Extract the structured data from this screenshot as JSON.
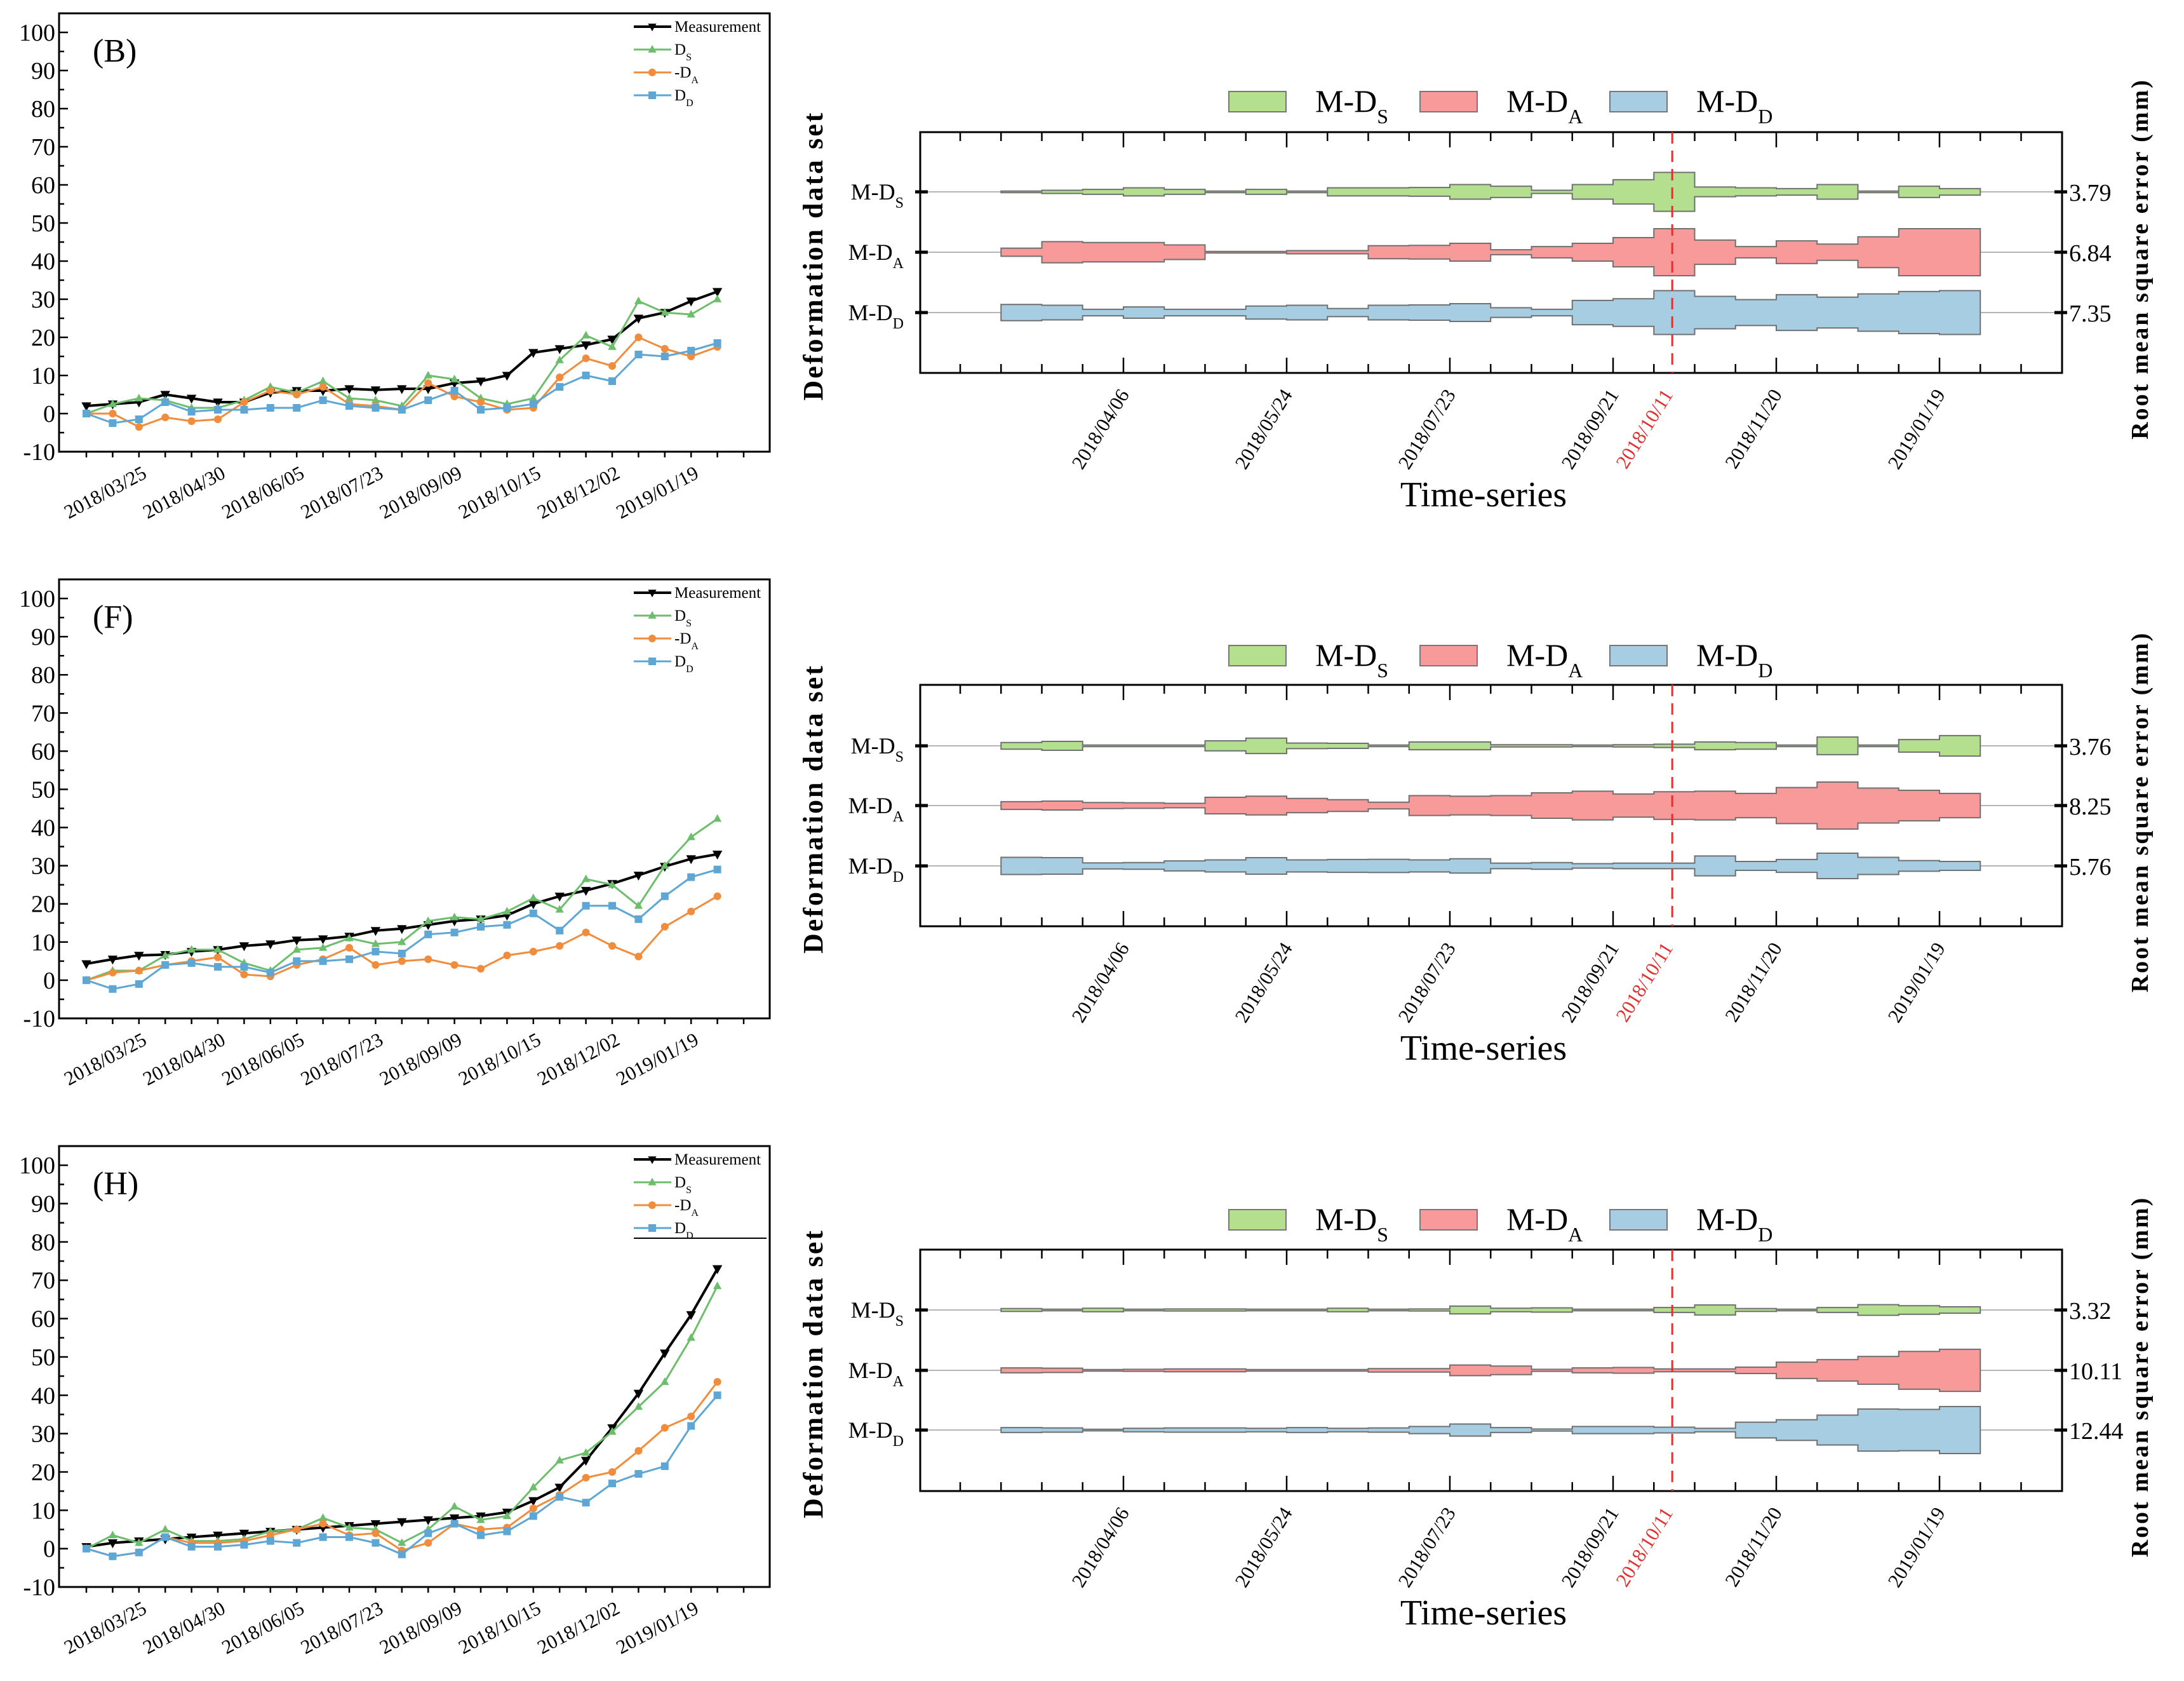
{
  "chart_data": [
    {
      "type": "line",
      "panel_label": "(B)",
      "ylim": [
        -10,
        105
      ],
      "y_ticks": [
        -10,
        0,
        10,
        20,
        30,
        40,
        50,
        60,
        70,
        80,
        90,
        100
      ],
      "y_tick_labels": [
        "-10",
        "0",
        "10",
        "20",
        "30",
        "40",
        "50",
        "60",
        "70",
        "80",
        "90",
        "100"
      ],
      "x_tick_labels": [
        "2018/03/25",
        "2018/04/30",
        "2018/06/05",
        "2018/07/23",
        "2018/09/09",
        "2018/10/15",
        "2018/12/02",
        "2019/01/19"
      ],
      "x_tick_label_indices": [
        2,
        5,
        8,
        11,
        14,
        17,
        20,
        23
      ],
      "series": [
        {
          "name": "Measurement",
          "sub": "",
          "color": "#000000",
          "marker": "triangle-down",
          "values": [
            2,
            2.5,
            3,
            5,
            4,
            3,
            3,
            5.5,
            6,
            6,
            6.5,
            6.2,
            6.5,
            6.5,
            8,
            8.5,
            10,
            16,
            17,
            18,
            19.5,
            25,
            26.5,
            29.5,
            32
          ]
        },
        {
          "name": "D",
          "sub": "S",
          "color": "#6cbd6c",
          "marker": "triangle-up",
          "values": [
            0,
            2.5,
            4,
            3.5,
            1.5,
            1.5,
            3.5,
            7,
            5.5,
            8.5,
            4,
            3.5,
            2,
            10,
            9,
            4,
            2.5,
            4,
            14,
            20.5,
            17.5,
            29.5,
            26.5,
            26,
            30
          ]
        },
        {
          "name": "-D",
          "sub": "A",
          "color": "#f08c3c",
          "marker": "circle",
          "values": [
            0,
            0,
            -3.5,
            -1,
            -2,
            -1.5,
            3,
            6,
            5,
            7,
            2.5,
            2,
            1,
            8,
            4.5,
            3,
            1,
            1.5,
            9.5,
            14.5,
            12.5,
            20,
            17,
            15,
            17.5
          ]
        },
        {
          "name": "D",
          "sub": "D",
          "color": "#5ea7d4",
          "marker": "square",
          "values": [
            0,
            -2.5,
            -1.5,
            3,
            0.5,
            1,
            1,
            1.5,
            1.5,
            3.5,
            2,
            1.5,
            1,
            3.5,
            6,
            1,
            1.5,
            2.5,
            7,
            10,
            8.5,
            15.5,
            15,
            16.5,
            18.5
          ]
        }
      ]
    },
    {
      "type": "band",
      "legend": [
        {
          "main": "M-D",
          "sub": "S",
          "color": "#b3df8f"
        },
        {
          "main": "M-D",
          "sub": "A",
          "color": "#f99a9a"
        },
        {
          "main": "M-D",
          "sub": "D",
          "color": "#a6cde2"
        }
      ],
      "rows": [
        {
          "main": "M-D",
          "sub": "S",
          "rmse": "3.79"
        },
        {
          "main": "M-D",
          "sub": "A",
          "rmse": "6.84"
        },
        {
          "main": "M-D",
          "sub": "D",
          "rmse": "7.35"
        }
      ],
      "x_tick_labels": [
        {
          "label": "2018/04/06",
          "index": 4
        },
        {
          "label": "2018/05/24",
          "index": 8
        },
        {
          "label": "2018/07/23",
          "index": 12
        },
        {
          "label": "2018/09/21",
          "index": 16
        },
        {
          "label": "2018/11/20",
          "index": 20
        },
        {
          "label": "2019/01/19",
          "index": 24
        }
      ],
      "marker_date": {
        "label": "2018/10/11",
        "index": 17.45,
        "color": "#e03030"
      },
      "xlabel": "Time-series",
      "ylabel": "Deformation data set",
      "y2label": "Root mean square error (mm)"
    },
    {
      "type": "line",
      "panel_label": "(F)",
      "ylim": [
        -10,
        105
      ],
      "y_ticks": [
        -10,
        0,
        10,
        20,
        30,
        40,
        50,
        60,
        70,
        80,
        90,
        100
      ],
      "y_tick_labels": [
        "-10",
        "0",
        "10",
        "20",
        "30",
        "40",
        "50",
        "60",
        "70",
        "80",
        "90",
        "100"
      ],
      "x_tick_labels": [
        "2018/03/25",
        "2018/04/30",
        "2018/06/05",
        "2018/07/23",
        "2018/09/09",
        "2018/10/15",
        "2018/12/02",
        "2019/01/19"
      ],
      "x_tick_label_indices": [
        2,
        5,
        8,
        11,
        14,
        17,
        20,
        23
      ],
      "series": [
        {
          "name": "Measurement",
          "sub": "",
          "color": "#000000",
          "marker": "triangle-down",
          "values": [
            4.3,
            5.5,
            6.5,
            6.7,
            7.5,
            8,
            9,
            9.5,
            10.5,
            10.8,
            11.5,
            13,
            13.5,
            14.5,
            15.5,
            16,
            17,
            20,
            22,
            23.5,
            25.3,
            27.5,
            29.8,
            31.8,
            33
          ]
        },
        {
          "name": "D",
          "sub": "S",
          "color": "#6cbd6c",
          "marker": "triangle-up",
          "values": [
            0,
            2.5,
            2.5,
            6.5,
            8,
            8,
            4.5,
            2.5,
            8,
            8.5,
            11,
            9.5,
            10,
            15.5,
            16.5,
            16,
            18,
            21.5,
            18.5,
            26.5,
            25,
            19.5,
            30,
            37.5,
            42.3
          ]
        },
        {
          "name": "-D",
          "sub": "A",
          "color": "#f08c3c",
          "marker": "circle",
          "values": [
            0,
            2,
            2.5,
            4,
            5,
            6,
            1.5,
            1,
            4,
            5.5,
            8.5,
            4,
            5,
            5.5,
            4,
            3,
            6.5,
            7.5,
            9,
            12.5,
            9,
            6.2,
            14,
            18,
            22
          ]
        },
        {
          "name": "D",
          "sub": "D",
          "color": "#5ea7d4",
          "marker": "square",
          "values": [
            0,
            -2.3,
            -1,
            4,
            4.5,
            3.5,
            3.5,
            2,
            5,
            5,
            5.5,
            7.5,
            7,
            12,
            12.5,
            14,
            14.5,
            17.5,
            13,
            19.5,
            19.5,
            16,
            22,
            27,
            29
          ]
        }
      ]
    },
    {
      "type": "band",
      "legend": [
        {
          "main": "M-D",
          "sub": "S",
          "color": "#b3df8f"
        },
        {
          "main": "M-D",
          "sub": "A",
          "color": "#f99a9a"
        },
        {
          "main": "M-D",
          "sub": "D",
          "color": "#a6cde2"
        }
      ],
      "rows": [
        {
          "main": "M-D",
          "sub": "S",
          "rmse": "3.76"
        },
        {
          "main": "M-D",
          "sub": "A",
          "rmse": "8.25"
        },
        {
          "main": "M-D",
          "sub": "D",
          "rmse": "5.76"
        }
      ],
      "x_tick_labels": [
        {
          "label": "2018/04/06",
          "index": 4
        },
        {
          "label": "2018/05/24",
          "index": 8
        },
        {
          "label": "2018/07/23",
          "index": 12
        },
        {
          "label": "2018/09/21",
          "index": 16
        },
        {
          "label": "2018/11/20",
          "index": 20
        },
        {
          "label": "2019/01/19",
          "index": 24
        }
      ],
      "marker_date": {
        "label": "2018/10/11",
        "index": 17.45,
        "color": "#e03030"
      },
      "xlabel": "Time-series",
      "ylabel": "Deformation data set",
      "y2label": "Root mean square error (mm)"
    },
    {
      "type": "line",
      "panel_label": "(H)",
      "ylim": [
        -10,
        105
      ],
      "y_ticks": [
        -10,
        0,
        10,
        20,
        30,
        40,
        50,
        60,
        70,
        80,
        90,
        100
      ],
      "y_tick_labels": [
        "-10",
        "0",
        "10",
        "20",
        "30",
        "40",
        "50",
        "60",
        "70",
        "80",
        "90",
        "100"
      ],
      "x_tick_labels": [
        "2018/03/25",
        "2018/04/30",
        "2018/06/05",
        "2018/07/23",
        "2018/09/09",
        "2018/10/15",
        "2018/12/02",
        "2019/01/19"
      ],
      "x_tick_label_indices": [
        2,
        5,
        8,
        11,
        14,
        17,
        20,
        23
      ],
      "series": [
        {
          "name": "Measurement",
          "sub": "",
          "color": "#000000",
          "marker": "triangle-down",
          "values": [
            0.5,
            1.5,
            2,
            2.5,
            3,
            3.5,
            4,
            4.5,
            5,
            5.5,
            6,
            6.5,
            7,
            7.5,
            8,
            8.5,
            9.5,
            12.5,
            16,
            23,
            31.5,
            40.5,
            51,
            61,
            73
          ]
        },
        {
          "name": "D",
          "sub": "S",
          "color": "#6cbd6c",
          "marker": "triangle-up",
          "values": [
            0,
            3.5,
            1.5,
            5,
            2,
            2,
            2.5,
            4.5,
            5,
            8,
            5.5,
            5,
            1.5,
            5,
            11,
            7.5,
            8.5,
            16,
            23,
            25,
            30.5,
            37,
            43.5,
            55,
            68.5
          ]
        },
        {
          "name": "-D",
          "sub": "A",
          "color": "#f08c3c",
          "marker": "circle",
          "values": [
            0,
            -2,
            -1,
            3,
            1.5,
            1.5,
            2,
            3.5,
            5,
            6.5,
            3.5,
            4,
            -0.5,
            1.5,
            6.5,
            5,
            5.5,
            10.5,
            14,
            18.5,
            20,
            25.5,
            31.5,
            34.5,
            43.5
          ]
        },
        {
          "name": "D",
          "sub": "D",
          "color": "#5ea7d4",
          "marker": "square",
          "values": [
            0,
            -2,
            -1,
            3,
            0.5,
            0.5,
            1,
            2,
            1.5,
            3,
            3,
            1.5,
            -1.5,
            4,
            6.5,
            3.5,
            4.5,
            8.5,
            13.5,
            12,
            17,
            19.5,
            21.5,
            32,
            40
          ]
        }
      ]
    },
    {
      "type": "band",
      "legend": [
        {
          "main": "M-D",
          "sub": "S",
          "color": "#b3df8f"
        },
        {
          "main": "M-D",
          "sub": "A",
          "color": "#f99a9a"
        },
        {
          "main": "M-D",
          "sub": "D",
          "color": "#a6cde2"
        }
      ],
      "rows": [
        {
          "main": "M-D",
          "sub": "S",
          "rmse": "3.32"
        },
        {
          "main": "M-D",
          "sub": "A",
          "rmse": "10.11"
        },
        {
          "main": "M-D",
          "sub": "D",
          "rmse": "12.44"
        }
      ],
      "x_tick_labels": [
        {
          "label": "2018/04/06",
          "index": 4
        },
        {
          "label": "2018/05/24",
          "index": 8
        },
        {
          "label": "2018/07/23",
          "index": 12
        },
        {
          "label": "2018/09/21",
          "index": 16
        },
        {
          "label": "2018/11/20",
          "index": 20
        },
        {
          "label": "2019/01/19",
          "index": 24
        }
      ],
      "marker_date": {
        "label": "2018/10/11",
        "index": 17.45,
        "color": "#e03030"
      },
      "xlabel": "Time-series",
      "ylabel": "Deformation data set",
      "y2label": "Root mean square error (mm)"
    }
  ]
}
